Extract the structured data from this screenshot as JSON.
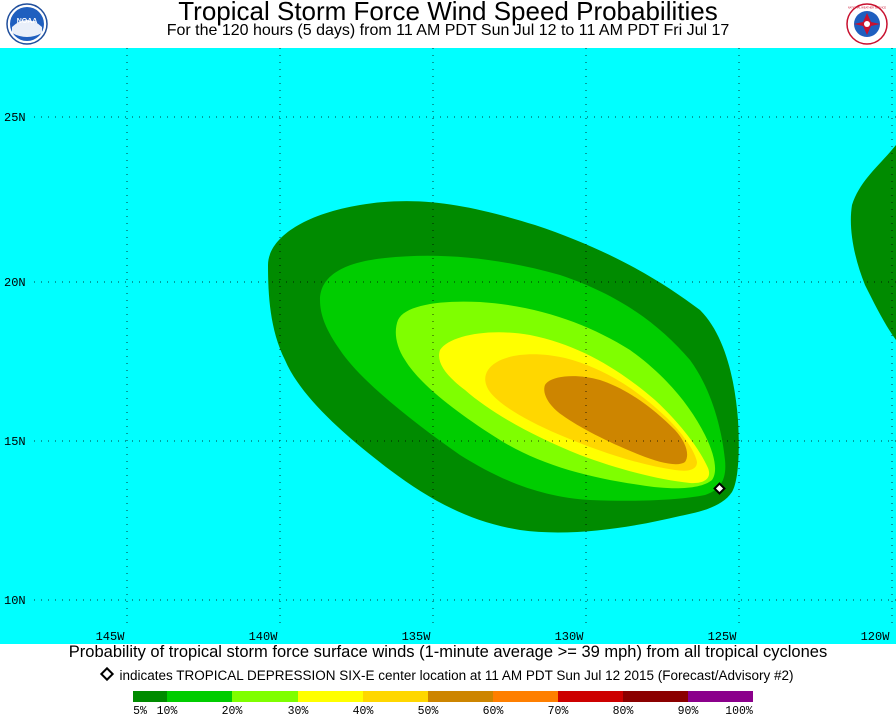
{
  "header": {
    "title": "Tropical Storm Force Wind Speed Probabilities",
    "subtitle": "For the 120 hours (5 days) from 11 AM PDT Sun Jul 12 to 11 AM PDT Fri Jul 17",
    "logo_left": "NOAA",
    "logo_right": "NATIONAL WEATHER SERVICE"
  },
  "map": {
    "background_color": "#00ffff",
    "lat_labels": [
      "25N",
      "20N",
      "15N",
      "10N"
    ],
    "lon_labels": [
      "145W",
      "140W",
      "135W",
      "130W",
      "125W",
      "120W"
    ],
    "storm_marker": {
      "lon": "124.8W",
      "lat": "13.4N"
    }
  },
  "caption": "Probability of tropical storm force surface winds (1-minute average >= 39 mph) from all tropical cyclones",
  "note": "indicates TROPICAL DEPRESSION SIX-E center location at 11 AM PDT Sun Jul 12 2015 (Forecast/Advisory #2)",
  "legend": {
    "labels": [
      "5%",
      "10%",
      "20%",
      "30%",
      "40%",
      "50%",
      "60%",
      "70%",
      "80%",
      "90%",
      "100%"
    ],
    "colors": [
      "#008b00",
      "#00cd00",
      "#7fff00",
      "#ffff00",
      "#ffd700",
      "#cd8500",
      "#ff7f00",
      "#cd0000",
      "#8b0000",
      "#8b008b"
    ]
  }
}
